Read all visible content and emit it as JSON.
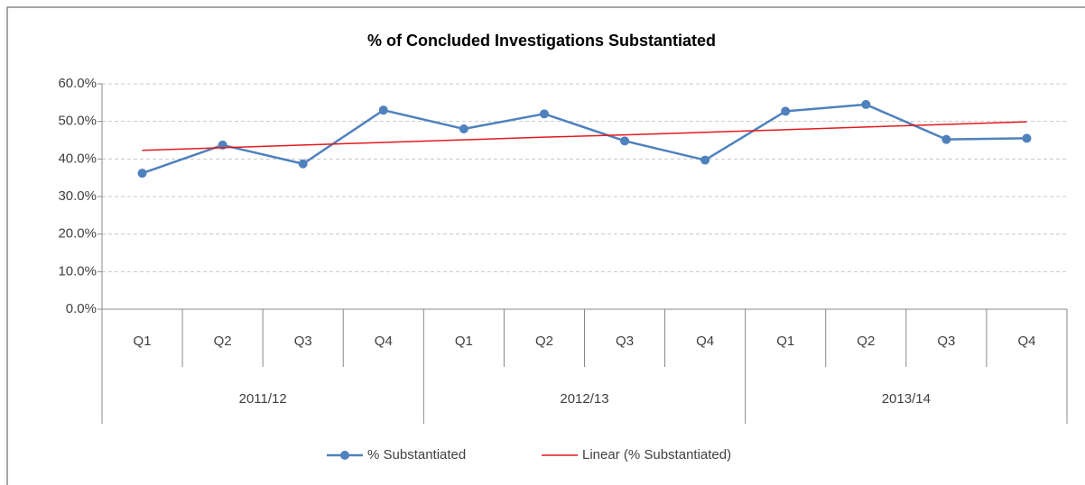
{
  "chart_data": {
    "type": "line",
    "title": "% of Concluded Investigations Substantiated",
    "categories": [
      "Q1",
      "Q2",
      "Q3",
      "Q4",
      "Q1",
      "Q2",
      "Q3",
      "Q4",
      "Q1",
      "Q2",
      "Q3",
      "Q4"
    ],
    "category_groups": [
      "2011/12",
      "2012/13",
      "2013/14"
    ],
    "series": [
      {
        "name": "% Substantiated",
        "color": "#4f81bd",
        "marker": "circle",
        "values": [
          36.2,
          43.7,
          38.7,
          53.0,
          48.0,
          52.0,
          44.8,
          39.7,
          52.7,
          54.5,
          45.2,
          45.5
        ]
      },
      {
        "name": "Linear (% Substantiated)",
        "color": "#e31a1c",
        "marker": "none",
        "values": [
          42.3,
          43.0,
          43.7,
          44.4,
          45.1,
          45.8,
          46.4,
          47.1,
          47.8,
          48.5,
          49.2,
          49.9
        ]
      }
    ],
    "ylim": [
      0,
      60
    ],
    "yticks": [
      {
        "value": 0,
        "label": "0.0%"
      },
      {
        "value": 10,
        "label": "10.0%"
      },
      {
        "value": 20,
        "label": "20.0%"
      },
      {
        "value": 30,
        "label": "30.0%"
      },
      {
        "value": 40,
        "label": "40.0%"
      },
      {
        "value": 50,
        "label": "50.0%"
      },
      {
        "value": 60,
        "label": "60.0%"
      }
    ],
    "grid": true,
    "legend": "bottom"
  }
}
